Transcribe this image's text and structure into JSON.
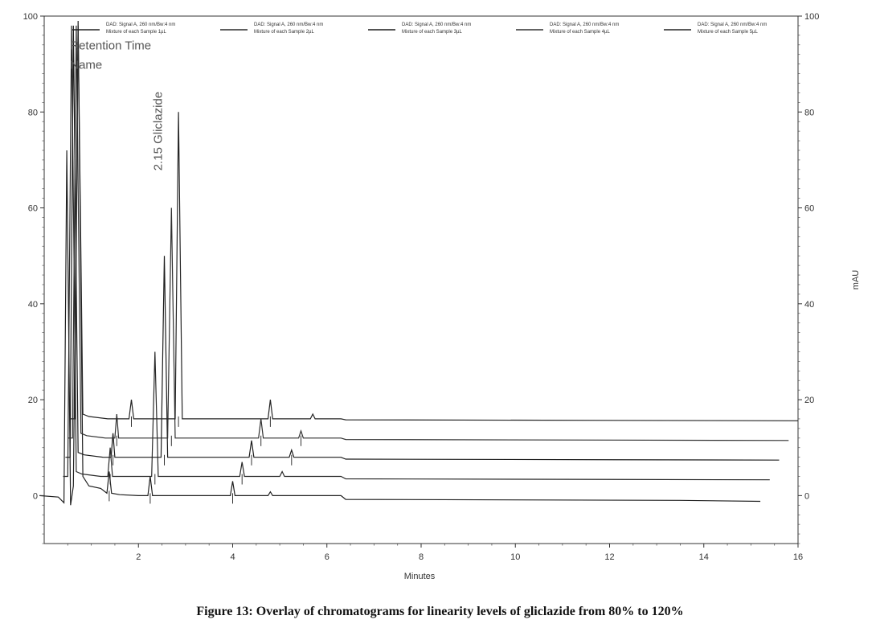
{
  "figure_caption": "Figure 13: Overlay of chromatograms for linearity levels of gliclazide from 80% to 120%",
  "chart_data": {
    "type": "line",
    "xlabel": "Minutes",
    "ylabel_right": "mAU",
    "xlim": [
      0,
      16
    ],
    "ylim": [
      -10,
      100
    ],
    "x_ticks": [
      "2",
      "4",
      "6",
      "8",
      "10",
      "12",
      "14",
      "16"
    ],
    "y_ticks_left": [
      "100",
      "80",
      "60",
      "40",
      "20",
      "0"
    ],
    "y_ticks_right": [
      "100",
      "80",
      "60",
      "40",
      "20",
      "0"
    ],
    "grid": false,
    "legend_position": "top",
    "annotations": [
      {
        "text": "Retention Time",
        "x": 0.55,
        "y": 93
      },
      {
        "text": "Name",
        "x": 0.55,
        "y": 89
      },
      {
        "text": "2.15 Gliclazide",
        "x": 2.5,
        "y": 76,
        "rotation": -90
      }
    ],
    "series": [
      {
        "legend": [
          "DAD: Signal A, 260 nm/Bw:4 nm",
          "Mixture of each Sample 1µL"
        ],
        "end_x": 15.2,
        "points": [
          [
            -0.1,
            0
          ],
          [
            0.3,
            -0.3
          ],
          [
            0.42,
            -1.5
          ],
          [
            0.48,
            72
          ],
          [
            0.56,
            -2
          ],
          [
            0.62,
            2
          ],
          [
            0.72,
            99
          ],
          [
            0.82,
            4
          ],
          [
            0.95,
            2
          ],
          [
            1.2,
            1.5
          ],
          [
            1.33,
            0.5
          ],
          [
            1.38,
            5
          ],
          [
            1.43,
            0.5
          ],
          [
            1.6,
            0.2
          ],
          [
            2.0,
            0
          ],
          [
            2.2,
            0
          ],
          [
            2.25,
            4
          ],
          [
            2.3,
            0
          ],
          [
            2.5,
            0
          ],
          [
            3.75,
            0
          ],
          [
            3.95,
            0
          ],
          [
            4.0,
            3
          ],
          [
            4.05,
            0
          ],
          [
            4.3,
            0
          ],
          [
            4.75,
            0
          ],
          [
            4.8,
            0.8
          ],
          [
            4.85,
            0
          ],
          [
            6.3,
            0
          ],
          [
            6.4,
            -0.8
          ],
          [
            13.5,
            -1
          ],
          [
            15.2,
            -1.2
          ]
        ]
      },
      {
        "legend": [
          "DAD: Signal A, 260 nm/Bw:4 nm",
          "Mixture of each Sample 2µL"
        ],
        "end_x": 15.4,
        "points": [
          [
            0.4,
            4
          ],
          [
            0.5,
            4
          ],
          [
            0.58,
            98
          ],
          [
            0.68,
            5
          ],
          [
            0.8,
            4.5
          ],
          [
            1.2,
            4
          ],
          [
            1.35,
            4
          ],
          [
            1.4,
            10
          ],
          [
            1.45,
            4
          ],
          [
            1.8,
            4
          ],
          [
            2.2,
            4
          ],
          [
            2.28,
            4
          ],
          [
            2.35,
            30
          ],
          [
            2.42,
            4
          ],
          [
            2.6,
            4
          ],
          [
            4.05,
            4
          ],
          [
            4.15,
            4
          ],
          [
            4.2,
            7
          ],
          [
            4.25,
            4
          ],
          [
            4.6,
            4
          ],
          [
            5.0,
            4
          ],
          [
            5.05,
            5
          ],
          [
            5.1,
            4
          ],
          [
            6.3,
            4
          ],
          [
            6.4,
            3.5
          ],
          [
            15.4,
            3.3
          ]
        ]
      },
      {
        "legend": [
          "DAD: Signal A, 260 nm/Bw:4 nm",
          "Mixture of each Sample 3µL"
        ],
        "end_x": 15.6,
        "points": [
          [
            0.45,
            8
          ],
          [
            0.55,
            8
          ],
          [
            0.62,
            98
          ],
          [
            0.72,
            9
          ],
          [
            0.85,
            8.5
          ],
          [
            1.25,
            8
          ],
          [
            1.42,
            8
          ],
          [
            1.46,
            13
          ],
          [
            1.5,
            8
          ],
          [
            1.9,
            8
          ],
          [
            2.4,
            8
          ],
          [
            2.48,
            8
          ],
          [
            2.55,
            50
          ],
          [
            2.62,
            8
          ],
          [
            2.8,
            8
          ],
          [
            4.25,
            8
          ],
          [
            4.35,
            8
          ],
          [
            4.4,
            11.5
          ],
          [
            4.45,
            8
          ],
          [
            4.8,
            8
          ],
          [
            5.2,
            8
          ],
          [
            5.25,
            9.5
          ],
          [
            5.3,
            8
          ],
          [
            6.3,
            8
          ],
          [
            6.4,
            7.6
          ],
          [
            15.6,
            7.4
          ]
        ]
      },
      {
        "legend": [
          "DAD: Signal A, 260 nm/Bw:4 nm",
          "Mixture of each Sample 4µL"
        ],
        "end_x": 15.8,
        "points": [
          [
            0.5,
            12
          ],
          [
            0.6,
            12
          ],
          [
            0.68,
            98
          ],
          [
            0.78,
            13
          ],
          [
            0.9,
            12.5
          ],
          [
            1.3,
            12
          ],
          [
            1.5,
            12
          ],
          [
            1.54,
            17
          ],
          [
            1.58,
            12
          ],
          [
            2.0,
            12
          ],
          [
            2.55,
            12
          ],
          [
            2.62,
            12
          ],
          [
            2.7,
            60
          ],
          [
            2.78,
            12
          ],
          [
            2.95,
            12
          ],
          [
            4.45,
            12
          ],
          [
            4.55,
            12
          ],
          [
            4.6,
            16
          ],
          [
            4.65,
            12
          ],
          [
            5.0,
            12
          ],
          [
            5.4,
            12
          ],
          [
            5.45,
            13.5
          ],
          [
            5.5,
            12
          ],
          [
            6.3,
            12
          ],
          [
            6.4,
            11.7
          ],
          [
            15.8,
            11.5
          ]
        ]
      },
      {
        "legend": [
          "DAD: Signal A, 260 nm/Bw:4 nm",
          "Mixture of each Sample 5µL"
        ],
        "end_x": 16.0,
        "points": [
          [
            0.55,
            16
          ],
          [
            0.65,
            16
          ],
          [
            0.72,
            98
          ],
          [
            0.82,
            17
          ],
          [
            0.95,
            16.5
          ],
          [
            1.35,
            16
          ],
          [
            1.8,
            16
          ],
          [
            1.85,
            20
          ],
          [
            1.9,
            16
          ],
          [
            2.2,
            16
          ],
          [
            2.7,
            16
          ],
          [
            2.78,
            16
          ],
          [
            2.85,
            80
          ],
          [
            2.93,
            16
          ],
          [
            3.1,
            16
          ],
          [
            4.65,
            16
          ],
          [
            4.75,
            16
          ],
          [
            4.8,
            20
          ],
          [
            4.85,
            16
          ],
          [
            5.2,
            16
          ],
          [
            5.65,
            16
          ],
          [
            5.7,
            17
          ],
          [
            5.75,
            16
          ],
          [
            6.3,
            16
          ],
          [
            6.4,
            15.8
          ],
          [
            16.0,
            15.6
          ]
        ]
      }
    ]
  }
}
